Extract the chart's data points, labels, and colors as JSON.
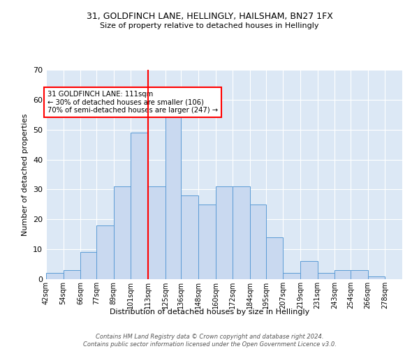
{
  "title1": "31, GOLDFINCH LANE, HELLINGLY, HAILSHAM, BN27 1FX",
  "title2": "Size of property relative to detached houses in Hellingly",
  "xlabel": "Distribution of detached houses by size in Hellingly",
  "ylabel": "Number of detached properties",
  "bin_labels": [
    "42sqm",
    "54sqm",
    "66sqm",
    "77sqm",
    "89sqm",
    "101sqm",
    "113sqm",
    "125sqm",
    "136sqm",
    "148sqm",
    "160sqm",
    "172sqm",
    "184sqm",
    "195sqm",
    "207sqm",
    "219sqm",
    "231sqm",
    "243sqm",
    "254sqm",
    "266sqm",
    "278sqm"
  ],
  "bin_edges": [
    42,
    54,
    66,
    77,
    89,
    101,
    113,
    125,
    136,
    148,
    160,
    172,
    184,
    195,
    207,
    219,
    231,
    243,
    254,
    266,
    278
  ],
  "bar_heights": [
    2,
    3,
    9,
    18,
    31,
    49,
    31,
    56,
    28,
    25,
    31,
    31,
    25,
    14,
    2,
    6,
    2,
    3,
    3,
    1,
    0
  ],
  "bar_color": "#c9d9f0",
  "bar_edge_color": "#5b9bd5",
  "vline_x": 113,
  "vline_color": "red",
  "annotation_text": "31 GOLDFINCH LANE: 111sqm\n← 30% of detached houses are smaller (106)\n70% of semi-detached houses are larger (247) →",
  "annotation_box_color": "white",
  "annotation_box_edge_color": "red",
  "ylim": [
    0,
    70
  ],
  "yticks": [
    0,
    10,
    20,
    30,
    40,
    50,
    60,
    70
  ],
  "footer": "Contains HM Land Registry data © Crown copyright and database right 2024.\nContains public sector information licensed under the Open Government Licence v3.0.",
  "bg_color": "#dce8f5",
  "fig_bg_color": "#ffffff"
}
